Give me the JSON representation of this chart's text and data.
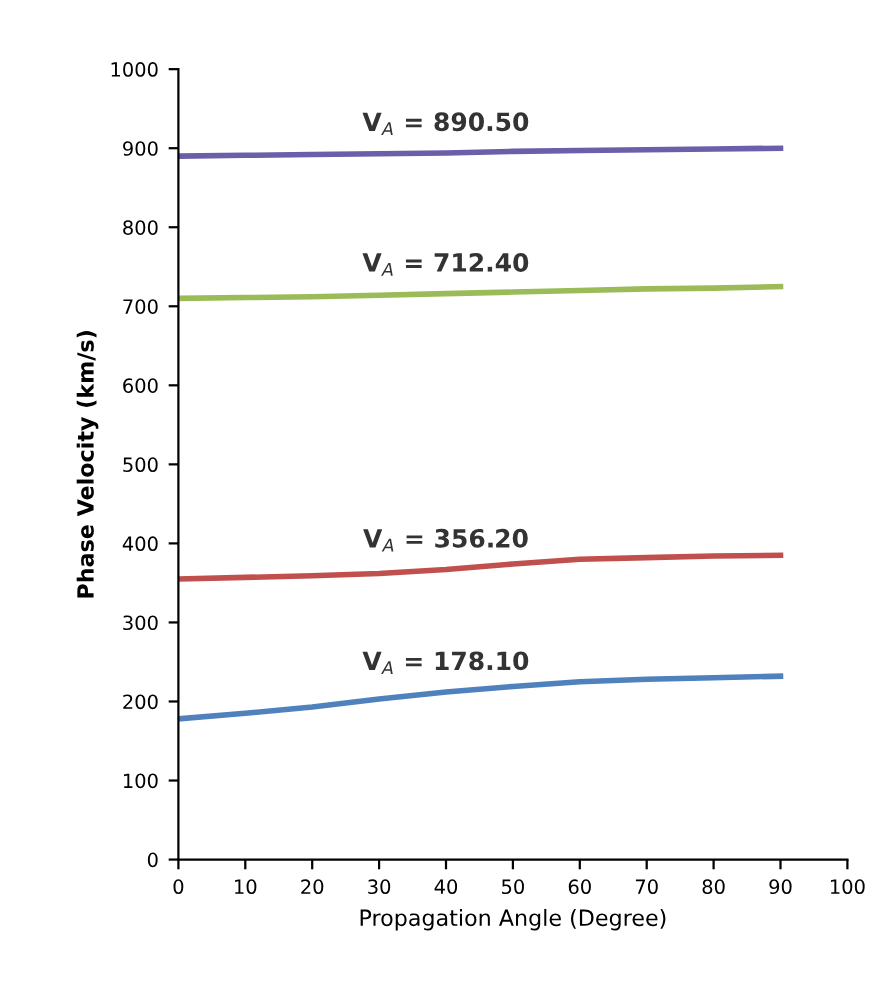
{
  "chart_data": {
    "type": "line",
    "xlabel": "Propagation Angle (Degree)",
    "ylabel": "Phase Velocity (km/s)",
    "x": [
      0,
      10,
      20,
      30,
      40,
      50,
      60,
      70,
      80,
      90
    ],
    "series": [
      {
        "name": "V$_{A}$ = 890.50",
        "color": "#6a5fa8",
        "values": [
          890,
          891,
          892,
          893,
          894,
          896,
          897,
          898,
          899,
          900
        ]
      },
      {
        "name": "V$_{A}$ = 712.40",
        "color": "#9bbb59",
        "values": [
          710,
          711,
          712,
          714,
          716,
          718,
          720,
          722,
          723,
          725
        ]
      },
      {
        "name": "V$_{A}$ = 356.20",
        "color": "#c0504d",
        "values": [
          355,
          357,
          359,
          362,
          367,
          374,
          380,
          382,
          384,
          385
        ]
      },
      {
        "name": "V$_{A}$ = 178.10",
        "color": "#4f81bd",
        "values": [
          178,
          185,
          193,
          203,
          212,
          219,
          225,
          228,
          230,
          232
        ]
      }
    ],
    "xlim": [
      0,
      100
    ],
    "xticks": [
      0,
      10,
      20,
      30,
      40,
      50,
      60,
      70,
      80,
      90,
      100
    ],
    "ylim": [
      0,
      1000
    ],
    "yticks": [
      0,
      100,
      200,
      300,
      400,
      500,
      600,
      700,
      800,
      900,
      1000
    ],
    "grid": false,
    "legend": false,
    "marker": "none",
    "line_style": "solid"
  }
}
